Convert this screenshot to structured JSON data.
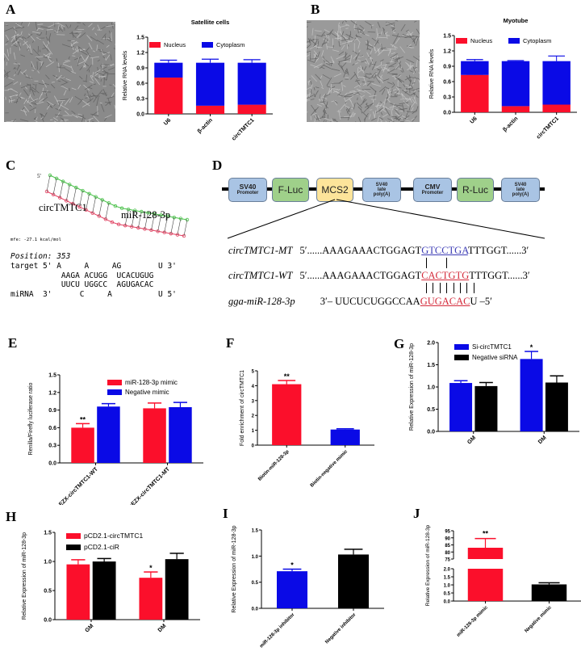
{
  "panels": {
    "A": {
      "letter": "A"
    },
    "B": {
      "letter": "B"
    },
    "C": {
      "letter": "C",
      "circ_label": "circTMTC1",
      "mir_label": "miR-128-3p",
      "five_prime": "5'",
      "mfe": "mfe: -27.1 kcal/mol",
      "position": "Position: 353",
      "alignment": [
        "target 5' A     A     AG        U 3'",
        "           AAGA ACUGG  UCACUGUG",
        "           UUCU UGGCC  AGUGACAC",
        "miRNA  3'      C     A          U 5'"
      ]
    },
    "D": {
      "letter": "D",
      "construct": [
        {
          "line1": "SV40",
          "line2": "Promoter",
          "color": "#a9c4e4",
          "kind": "small"
        },
        {
          "line1": "F-Luc",
          "line2": "",
          "color": "#9fd08a",
          "kind": "big"
        },
        {
          "line1": "MCS2",
          "line2": "",
          "color": "#fde49a",
          "kind": "big"
        },
        {
          "line1": "SV40",
          "line2": "late",
          "line3": "poly(A)",
          "color": "#a9c4e4",
          "kind": "tiny"
        },
        {
          "line1": "CMV",
          "line2": "Promoter",
          "color": "#a9c4e4",
          "kind": "small"
        },
        {
          "line1": "R-Luc",
          "line2": "",
          "color": "#9fd08a",
          "kind": "big"
        },
        {
          "line1": "SV40",
          "line2": "late",
          "line3": "poly(A)",
          "color": "#a9c4e4",
          "kind": "tiny"
        }
      ],
      "sequences": {
        "mt": {
          "label": "circTMTC1-MT",
          "prefix": "5′......AAAGAAACTGGAGT",
          "site": "GTCCTGA",
          "suffix": "TTTGGT......3′",
          "site_color": "#3b3bb5"
        },
        "wt": {
          "label": "circTMTC1-WT",
          "prefix": "5′......AAAGAAACTGGAGT",
          "site": "CACTGTG",
          "suffix": "TTTGGT......3′",
          "site_color": "#d42a3a"
        },
        "mir": {
          "label": "gga-miR-128-3p",
          "prefix": "3′–  UUCUCUGGCCAA",
          "site": "GUGACAC",
          "suffix": "U  –5′",
          "site_color": "#d42a3a"
        }
      }
    },
    "E": {
      "letter": "E"
    },
    "F": {
      "letter": "F"
    },
    "G": {
      "letter": "G"
    },
    "H": {
      "letter": "H"
    },
    "I": {
      "letter": "I"
    },
    "J": {
      "letter": "J"
    }
  },
  "colors": {
    "red": "#fb0f2b",
    "blue": "#0a0ae6",
    "black": "#000000"
  },
  "chart_data": [
    {
      "id": "A",
      "type": "bar",
      "stacked": true,
      "title": "Satellite cells",
      "ylabel": "Relative RNA levels",
      "categories": [
        "U6",
        "β-actin",
        "circTMTC1"
      ],
      "ylim": [
        0,
        1.5
      ],
      "yticks": [
        "0.0",
        "0.3",
        "0.6",
        "0.9",
        "1.2",
        "1.5"
      ],
      "series": [
        {
          "name": "Nucleus",
          "color": "#fb0f2b",
          "values": [
            0.71,
            0.16,
            0.18
          ],
          "errors": [
            0.07,
            0.0,
            0.03
          ]
        },
        {
          "name": "Cytoplasm",
          "color": "#0a0ae6",
          "values": [
            0.29,
            0.84,
            0.82
          ],
          "errors": [
            0.05,
            0.07,
            0.06
          ]
        }
      ],
      "legend": "top"
    },
    {
      "id": "B",
      "type": "bar",
      "stacked": true,
      "title": "Myotube",
      "ylabel": "Relative RNA levels",
      "categories": [
        "U6",
        "β-actin",
        "circTMTC1"
      ],
      "ylim": [
        0,
        1.5
      ],
      "yticks": [
        "0.0",
        "0.3",
        "0.6",
        "0.9",
        "1.2",
        "1.5"
      ],
      "series": [
        {
          "name": "Nucleus",
          "color": "#fb0f2b",
          "values": [
            0.73,
            0.12,
            0.15
          ],
          "errors": [
            0.01,
            0.0,
            0.01
          ]
        },
        {
          "name": "Cytoplasm",
          "color": "#0a0ae6",
          "values": [
            0.27,
            0.88,
            0.85
          ],
          "errors": [
            0.03,
            0.01,
            0.1
          ]
        }
      ],
      "legend": "top"
    },
    {
      "id": "E",
      "type": "bar",
      "title": "",
      "ylabel": "Renilla/Firefly luciferase ratio",
      "categories": [
        "pEZX-circTMTC1-WT",
        "pEZX-circTMTC1-MT"
      ],
      "ylim": [
        0,
        1.5
      ],
      "yticks": [
        "0.0",
        "0.3",
        "0.6",
        "0.9",
        "1.2",
        "1.5"
      ],
      "series": [
        {
          "name": "miR-128-3p mimic",
          "color": "#fb0f2b",
          "values": [
            0.6,
            0.93
          ],
          "errors": [
            0.07,
            0.09
          ],
          "sig": [
            "**",
            ""
          ]
        },
        {
          "name": "Negative mimic",
          "color": "#0a0ae6",
          "values": [
            0.96,
            0.95
          ],
          "errors": [
            0.05,
            0.08
          ],
          "sig": [
            "",
            ""
          ]
        }
      ],
      "legend": "top-right"
    },
    {
      "id": "F",
      "type": "bar",
      "title": "",
      "ylabel": "Fold enrichment of circTMTC1",
      "categories": [
        "Biotin-miR-128-3p",
        "Biotin-negative mimic"
      ],
      "ylim": [
        0,
        5
      ],
      "yticks": [
        "0",
        "1",
        "2",
        "3",
        "4",
        "5"
      ],
      "series": [
        {
          "name": "",
          "colors": [
            "#fb0f2b",
            "#0a0ae6"
          ],
          "values": [
            4.1,
            1.05
          ],
          "errors": [
            0.25,
            0.05
          ],
          "sig": [
            "**",
            ""
          ]
        }
      ]
    },
    {
      "id": "G",
      "type": "bar",
      "title": "",
      "ylabel": "Relative Expression of miR-128-3p",
      "categories": [
        "GM",
        "DM"
      ],
      "ylim": [
        0,
        2.0
      ],
      "yticks": [
        "0.0",
        "0.5",
        "1.0",
        "1.5",
        "2.0"
      ],
      "series": [
        {
          "name": "Si-circTMTC1",
          "color": "#0a0ae6",
          "values": [
            1.09,
            1.63
          ],
          "errors": [
            0.05,
            0.17
          ],
          "sig": [
            "",
            "*"
          ]
        },
        {
          "name": "Negative siRNA",
          "color": "#000000",
          "values": [
            1.02,
            1.1
          ],
          "errors": [
            0.08,
            0.15
          ],
          "sig": [
            "",
            ""
          ]
        }
      ],
      "legend": "top-left"
    },
    {
      "id": "H",
      "type": "bar",
      "title": "",
      "ylabel": "Relative Expression of miR-128-3p",
      "categories": [
        "GM",
        "DM"
      ],
      "ylim": [
        0,
        1.5
      ],
      "yticks": [
        "0.0",
        "0.5",
        "1.0",
        "1.5"
      ],
      "series": [
        {
          "name": "pCD2.1-circTMTC1",
          "color": "#fb0f2b",
          "values": [
            0.95,
            0.72
          ],
          "errors": [
            0.08,
            0.1
          ],
          "sig": [
            "",
            "*"
          ]
        },
        {
          "name": "pCD2.1-ciR",
          "color": "#000000",
          "values": [
            1.0,
            1.04
          ],
          "errors": [
            0.05,
            0.1
          ],
          "sig": [
            "",
            ""
          ]
        }
      ],
      "legend": "top-left"
    },
    {
      "id": "I",
      "type": "bar",
      "title": "",
      "ylabel": "Relative Expression of miR-128-3p",
      "categories": [
        "miR-128-3p inhibitor",
        "Negative inhibitor"
      ],
      "ylim": [
        0,
        1.5
      ],
      "yticks": [
        "0.0",
        "0.5",
        "1.0",
        "1.5"
      ],
      "series": [
        {
          "name": "",
          "colors": [
            "#0a0ae6",
            "#000000"
          ],
          "values": [
            0.71,
            1.03
          ],
          "errors": [
            0.04,
            0.1
          ],
          "sig": [
            "*",
            ""
          ]
        }
      ]
    },
    {
      "id": "J",
      "type": "bar",
      "broken_axis": true,
      "title": "",
      "ylabel": "Relative Expression of miR-128-3p",
      "categories": [
        "miR-128-3p mimic",
        "Negative mimic"
      ],
      "ylim_lower": [
        0,
        2.0
      ],
      "yticks_lower": [
        "0.0",
        "0.5",
        "1.0",
        "1.5",
        "2.0"
      ],
      "ylim_upper": [
        75,
        95
      ],
      "yticks_upper": [
        "75",
        "80",
        "85",
        "90",
        "95"
      ],
      "series": [
        {
          "name": "",
          "colors": [
            "#fb0f2b",
            "#000000"
          ],
          "values": [
            83,
            1.03
          ],
          "errors": [
            6.5,
            0.1
          ],
          "sig": [
            "**",
            ""
          ]
        }
      ]
    }
  ]
}
